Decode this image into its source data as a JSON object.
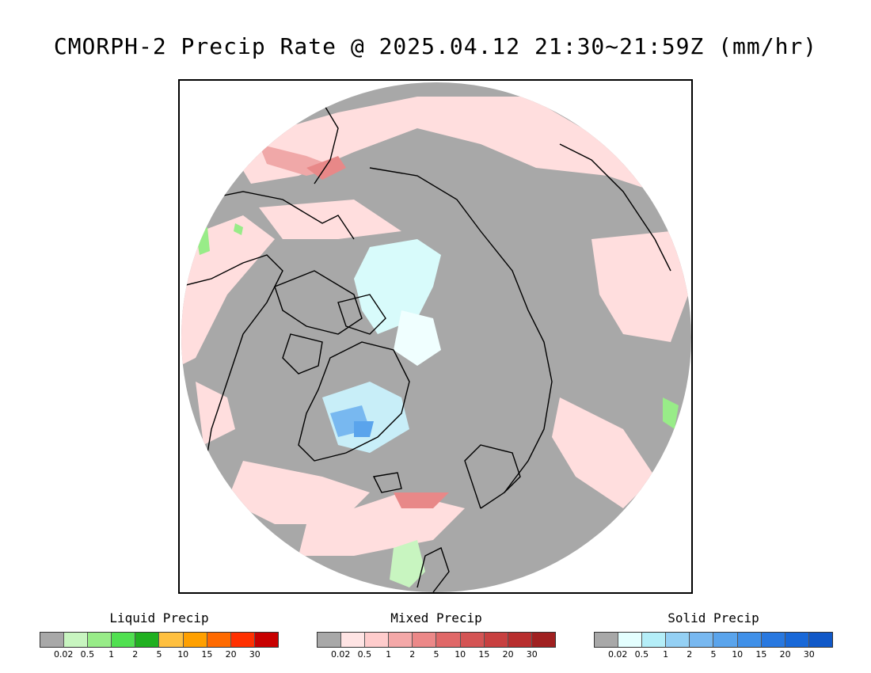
{
  "title": "CMORPH-2 Precip Rate @ 2025.04.12 21:30~21:59Z (mm/hr)",
  "map": {
    "projection": "north polar stereographic",
    "ocean_color": "#a8a8a8",
    "coast_color": "#000000",
    "icons": [
      "polar-map",
      "coastline",
      "precip-shading"
    ]
  },
  "legends": [
    {
      "key": "liquid",
      "label": "Liquid Precip",
      "colors": [
        "#a8a8a8",
        "#c8f5c0",
        "#98ec88",
        "#50e050",
        "#20b020",
        "#ffc040",
        "#ffa000",
        "#ff6a00",
        "#ff3000",
        "#c80000"
      ],
      "ticks": [
        "0.02",
        "0.5",
        "1",
        "2",
        "5",
        "10",
        "15",
        "20",
        "30"
      ]
    },
    {
      "key": "mixed",
      "label": "Mixed Precip",
      "colors": [
        "#a8a8a8",
        "#ffe4e4",
        "#ffcccc",
        "#f4a8a8",
        "#ec8888",
        "#e06868",
        "#d45454",
        "#c84040",
        "#b82e2e",
        "#a02020"
      ],
      "ticks": [
        "0.02",
        "0.5",
        "1",
        "2",
        "5",
        "10",
        "15",
        "20",
        "30"
      ]
    },
    {
      "key": "solid",
      "label": "Solid Precip",
      "colors": [
        "#a8a8a8",
        "#e4ffff",
        "#b4eef8",
        "#94d0f4",
        "#78b8f0",
        "#5aa4ec",
        "#4090e8",
        "#2878e0",
        "#1868d8",
        "#1058c8"
      ],
      "ticks": [
        "0.02",
        "0.5",
        "1",
        "2",
        "5",
        "10",
        "15",
        "20",
        "30"
      ]
    }
  ]
}
